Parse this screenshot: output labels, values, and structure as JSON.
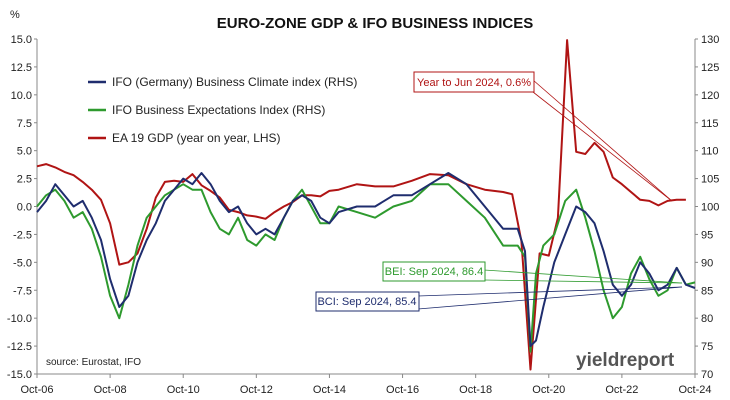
{
  "chart_data": {
    "type": "line",
    "title": "EURO-ZONE GDP & IFO BUSINESS INDICES",
    "left_axis_unit": "%",
    "ylim_left": [
      -15.0,
      15.0
    ],
    "ylim_right": [
      70,
      130
    ],
    "left_ticks": [
      "15.0",
      "12.5",
      "10.0",
      "7.5",
      "5.0",
      "2.5",
      "0.0",
      "-2.5",
      "-5.0",
      "-7.5",
      "-10.0",
      "-12.5",
      "-15.0"
    ],
    "right_ticks": [
      "130",
      "125",
      "120",
      "115",
      "110",
      "105",
      "100",
      "95",
      "90",
      "85",
      "80",
      "75",
      "70"
    ],
    "x_ticks": [
      "Oct-06",
      "Oct-08",
      "Oct-10",
      "Oct-12",
      "Oct-14",
      "Oct-16",
      "Oct-18",
      "Oct-20",
      "Oct-22",
      "Oct-24"
    ],
    "x_range": [
      2006.75,
      2024.75
    ],
    "colors": {
      "bci": "#1f2d6e",
      "bei": "#2e9a2e",
      "gdp": "#b01414",
      "axis": "#888888"
    },
    "series": [
      {
        "name": "IFO (Germany) Business Climate index (RHS)",
        "axis": "right",
        "color": "#1f2d6e",
        "x": [
          2006.75,
          2007.0,
          2007.25,
          2007.5,
          2007.75,
          2008.0,
          2008.25,
          2008.5,
          2008.75,
          2009.0,
          2009.25,
          2009.5,
          2009.75,
          2010.0,
          2010.25,
          2010.5,
          2010.75,
          2011.0,
          2011.25,
          2011.5,
          2011.75,
          2012.0,
          2012.25,
          2012.5,
          2012.75,
          2013.0,
          2013.25,
          2013.5,
          2013.75,
          2014.0,
          2014.25,
          2014.5,
          2014.75,
          2015.0,
          2015.5,
          2016.0,
          2016.5,
          2017.0,
          2017.5,
          2018.0,
          2018.5,
          2019.0,
          2019.5,
          2019.9,
          2020.1,
          2020.25,
          2020.4,
          2020.6,
          2020.9,
          2021.2,
          2021.5,
          2021.75,
          2022.0,
          2022.25,
          2022.5,
          2022.75,
          2023.0,
          2023.25,
          2023.5,
          2023.75,
          2024.0,
          2024.25,
          2024.5,
          2024.75
        ],
        "values": [
          99,
          101,
          104,
          102,
          100,
          101,
          98,
          94,
          87,
          82,
          84,
          90,
          94,
          97,
          101,
          103,
          105,
          104,
          106,
          104,
          101,
          99,
          100,
          97,
          95,
          96,
          95,
          98,
          101,
          102,
          101,
          98,
          97,
          99,
          100,
          100,
          102,
          102,
          104,
          106,
          104,
          100,
          96,
          96,
          92,
          75,
          76,
          82,
          90,
          95,
          100,
          99,
          97,
          92,
          86,
          84,
          86,
          90,
          88,
          85,
          86,
          89,
          86,
          85.4
        ]
      },
      {
        "name": "IFO Business Expectations Index (RHS)",
        "axis": "right",
        "color": "#2e9a2e",
        "x": [
          2006.75,
          2007.0,
          2007.25,
          2007.5,
          2007.75,
          2008.0,
          2008.25,
          2008.5,
          2008.75,
          2009.0,
          2009.25,
          2009.5,
          2009.75,
          2010.0,
          2010.25,
          2010.5,
          2010.75,
          2011.0,
          2011.25,
          2011.5,
          2011.75,
          2012.0,
          2012.25,
          2012.5,
          2012.75,
          2013.0,
          2013.25,
          2013.5,
          2013.75,
          2014.0,
          2014.25,
          2014.5,
          2014.75,
          2015.0,
          2015.5,
          2016.0,
          2016.5,
          2017.0,
          2017.5,
          2018.0,
          2018.5,
          2019.0,
          2019.5,
          2019.9,
          2020.1,
          2020.25,
          2020.4,
          2020.6,
          2020.9,
          2021.2,
          2021.5,
          2021.75,
          2022.0,
          2022.25,
          2022.5,
          2022.75,
          2023.0,
          2023.25,
          2023.5,
          2023.75,
          2024.0,
          2024.25,
          2024.5,
          2024.75
        ],
        "values": [
          100,
          102,
          103,
          101,
          98,
          99,
          96,
          91,
          84,
          80,
          86,
          93,
          98,
          100,
          102,
          103,
          104,
          103,
          103,
          99,
          96,
          95,
          98,
          94,
          93,
          95,
          94,
          98,
          101,
          103,
          100,
          97,
          97,
          100,
          99,
          98,
          100,
          101,
          104,
          104,
          101,
          98,
          93,
          93,
          91,
          74,
          88,
          93,
          95,
          101,
          103,
          98,
          92,
          85,
          80,
          82,
          88,
          91,
          87,
          84,
          85,
          89,
          86,
          86.4
        ]
      },
      {
        "name": "EA 19 GDP (year on year, LHS)",
        "axis": "left",
        "color": "#b01414",
        "x": [
          2006.75,
          2007.0,
          2007.25,
          2007.5,
          2007.75,
          2008.0,
          2008.25,
          2008.5,
          2008.75,
          2009.0,
          2009.25,
          2009.5,
          2009.75,
          2010.0,
          2010.25,
          2010.5,
          2010.75,
          2011.0,
          2011.25,
          2011.5,
          2011.75,
          2012.0,
          2012.25,
          2012.5,
          2012.75,
          2013.0,
          2013.25,
          2013.5,
          2013.75,
          2014.0,
          2014.25,
          2014.5,
          2014.75,
          2015.0,
          2015.5,
          2016.0,
          2016.5,
          2017.0,
          2017.5,
          2018.0,
          2018.5,
          2019.0,
          2019.5,
          2019.75,
          2020.0,
          2020.25,
          2020.5,
          2020.75,
          2021.0,
          2021.25,
          2021.5,
          2021.75,
          2022.0,
          2022.25,
          2022.5,
          2022.75,
          2023.0,
          2023.25,
          2023.5,
          2023.75,
          2024.0,
          2024.25,
          2024.5
        ],
        "values": [
          3.6,
          3.8,
          3.5,
          3.1,
          2.8,
          2.2,
          1.5,
          0.6,
          -1.5,
          -5.2,
          -5.0,
          -4.2,
          -2.0,
          0.8,
          2.2,
          2.3,
          2.2,
          2.9,
          1.9,
          1.4,
          0.8,
          -0.3,
          -0.5,
          -0.8,
          -0.9,
          -1.1,
          -0.5,
          0.0,
          0.4,
          1.0,
          1.0,
          0.9,
          1.4,
          1.5,
          2.0,
          1.8,
          1.8,
          2.3,
          2.9,
          2.8,
          2.0,
          1.5,
          1.3,
          1.1,
          -3.1,
          -14.6,
          -4.2,
          -4.4,
          -1.0,
          14.9,
          4.9,
          4.7,
          5.7,
          4.9,
          2.6,
          2.0,
          1.3,
          0.6,
          0.5,
          0.1,
          0.5,
          0.6,
          0.6
        ]
      }
    ],
    "annotations": {
      "gdp": {
        "text": "Year to Jun 2024, 0.6%",
        "color": "#b01414"
      },
      "bei": {
        "text": "BEI: Sep 2024, 86.4",
        "color": "#2e9a2e"
      },
      "bci": {
        "text": "BCI: Sep 2024, 85.4",
        "color": "#1f2d6e"
      }
    },
    "legend_position": "top-left",
    "grid": false
  },
  "source_text": "source: Eurostat, IFO",
  "brand_text": "yieldreport"
}
